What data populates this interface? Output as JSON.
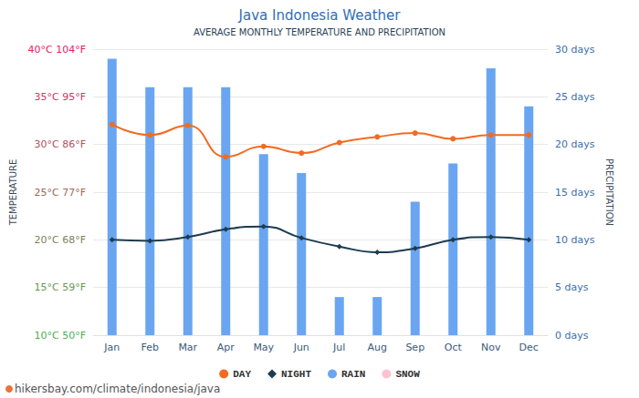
{
  "chart_data": {
    "type": "bar",
    "title": "Java Indonesia Weather",
    "subtitle": "AVERAGE MONTHLY TEMPERATURE AND PRECIPITATION",
    "source": "hikersbay.com/climate/indonesia/java",
    "ylabel": "TEMPERATURE",
    "y2label": "PRECIPITATION",
    "categories": [
      "Jan",
      "Feb",
      "Mar",
      "Apr",
      "May",
      "Jun",
      "Jul",
      "Aug",
      "Sep",
      "Oct",
      "Nov",
      "Dec"
    ],
    "series": [
      {
        "name": "DAY",
        "type": "line",
        "color": "#f26b21",
        "marker": "circle",
        "values": [
          32.1,
          31.0,
          32.0,
          28.7,
          29.8,
          29.1,
          30.2,
          30.8,
          31.2,
          30.6,
          31.0,
          31.0
        ]
      },
      {
        "name": "NIGHT",
        "type": "line",
        "color": "#1d3c4f",
        "marker": "diamond",
        "values": [
          20.0,
          19.9,
          20.3,
          21.1,
          21.4,
          20.2,
          19.3,
          18.7,
          19.1,
          20.0,
          20.3,
          20.0
        ]
      },
      {
        "name": "RAIN",
        "type": "bar",
        "axis": "y2",
        "color": "#6aa5f2",
        "values": [
          29,
          26,
          26,
          26,
          19,
          17,
          4,
          4,
          14,
          18,
          28,
          24
        ]
      },
      {
        "name": "SNOW",
        "type": "bar",
        "axis": "y2",
        "color": "#ffc0d0",
        "values": [
          0,
          0,
          0,
          0,
          0,
          0,
          0,
          0,
          0,
          0,
          0,
          0
        ]
      }
    ],
    "ylim": [
      10,
      40
    ],
    "yticks": [
      {
        "value": 10,
        "label": "10°C 50°F"
      },
      {
        "value": 15,
        "label": "15°C 59°F"
      },
      {
        "value": 20,
        "label": "20°C 68°F"
      },
      {
        "value": 25,
        "label": "25°C 77°F"
      },
      {
        "value": 30,
        "label": "30°C 86°F"
      },
      {
        "value": 35,
        "label": "35°C 95°F"
      },
      {
        "value": 40,
        "label": "40°C 104°F"
      }
    ],
    "y2lim": [
      0,
      30
    ],
    "y2ticks": [
      {
        "value": 0,
        "label": "0 days"
      },
      {
        "value": 5,
        "label": "5 days"
      },
      {
        "value": 10,
        "label": "10 days"
      },
      {
        "value": 15,
        "label": "15 days"
      },
      {
        "value": 20,
        "label": "20 days"
      },
      {
        "value": 25,
        "label": "25 days"
      },
      {
        "value": 30,
        "label": "30 days"
      }
    ],
    "grid": true,
    "legend": "bottom"
  }
}
